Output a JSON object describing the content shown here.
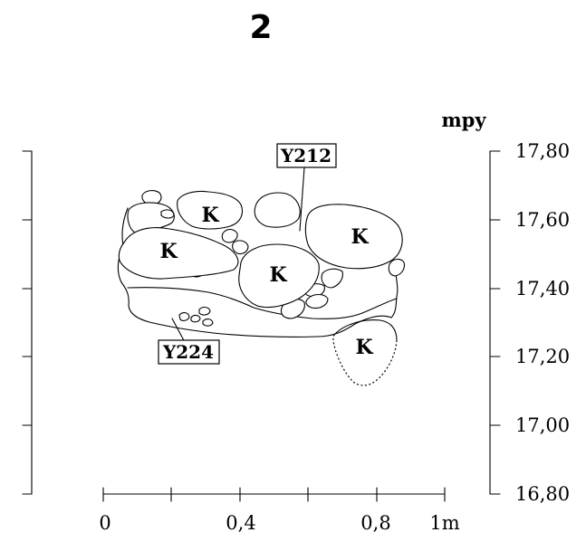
{
  "title": "2",
  "axis": {
    "unit": "mpy",
    "elevation_labels": [
      "17,80",
      "17,60",
      "17,40",
      "17,20",
      "17,00",
      "16,80"
    ],
    "horizontal_labels": [
      "0",
      "0,4",
      "0,8",
      "1m"
    ]
  },
  "contexts": [
    "Y212",
    "Y224"
  ],
  "stones": {
    "label": "K",
    "count_labeled": 5
  }
}
